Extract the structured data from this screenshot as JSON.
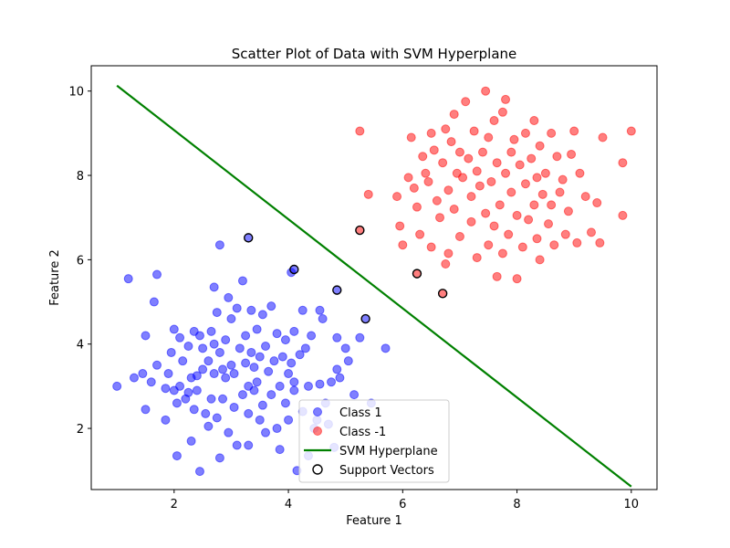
{
  "chart_data": {
    "type": "scatter",
    "title": "Scatter Plot of Data with SVM Hyperplane",
    "xlabel": "Feature 1",
    "ylabel": "Feature 2",
    "xlim": [
      0.55,
      10.45
    ],
    "ylim": [
      0.55,
      10.6
    ],
    "xticks": [
      2,
      4,
      6,
      8,
      10
    ],
    "yticks": [
      2,
      4,
      6,
      8,
      10
    ],
    "grid": false,
    "legend_position": "lower-center",
    "series": [
      {
        "name": "Class 1",
        "kind": "scatter",
        "color": "#0000ff",
        "alpha": 0.5,
        "points": [
          [
            1.0,
            3.0
          ],
          [
            1.2,
            5.55
          ],
          [
            1.3,
            3.2
          ],
          [
            1.45,
            3.3
          ],
          [
            1.5,
            2.45
          ],
          [
            1.5,
            4.2
          ],
          [
            1.6,
            3.1
          ],
          [
            1.65,
            5.0
          ],
          [
            1.7,
            5.65
          ],
          [
            1.7,
            3.5
          ],
          [
            1.85,
            2.2
          ],
          [
            1.85,
            2.95
          ],
          [
            1.9,
            3.3
          ],
          [
            1.95,
            3.8
          ],
          [
            2.0,
            2.9
          ],
          [
            2.0,
            4.35
          ],
          [
            2.05,
            1.35
          ],
          [
            2.05,
            2.6
          ],
          [
            2.1,
            3.0
          ],
          [
            2.1,
            4.15
          ],
          [
            2.15,
            3.6
          ],
          [
            2.2,
            2.7
          ],
          [
            2.25,
            2.85
          ],
          [
            2.25,
            3.95
          ],
          [
            2.3,
            3.2
          ],
          [
            2.3,
            1.7
          ],
          [
            2.35,
            4.3
          ],
          [
            2.35,
            2.45
          ],
          [
            2.4,
            3.25
          ],
          [
            2.4,
            2.9
          ],
          [
            2.45,
            0.98
          ],
          [
            2.45,
            4.2
          ],
          [
            2.5,
            3.9
          ],
          [
            2.5,
            3.4
          ],
          [
            2.55,
            2.35
          ],
          [
            2.6,
            3.6
          ],
          [
            2.6,
            2.05
          ],
          [
            2.65,
            4.3
          ],
          [
            2.65,
            2.7
          ],
          [
            2.7,
            5.35
          ],
          [
            2.7,
            4.0
          ],
          [
            2.7,
            3.3
          ],
          [
            2.75,
            2.25
          ],
          [
            2.75,
            4.75
          ],
          [
            2.8,
            1.3
          ],
          [
            2.8,
            3.8
          ],
          [
            2.8,
            6.35
          ],
          [
            2.85,
            3.4
          ],
          [
            2.85,
            2.7
          ],
          [
            2.9,
            4.1
          ],
          [
            2.9,
            3.2
          ],
          [
            2.95,
            5.1
          ],
          [
            2.95,
            1.9
          ],
          [
            3.0,
            3.5
          ],
          [
            3.0,
            4.6
          ],
          [
            3.05,
            2.5
          ],
          [
            3.05,
            3.3
          ],
          [
            3.1,
            1.6
          ],
          [
            3.1,
            4.85
          ],
          [
            3.15,
            3.9
          ],
          [
            3.2,
            5.5
          ],
          [
            3.2,
            2.8
          ],
          [
            3.25,
            4.2
          ],
          [
            3.25,
            3.55
          ],
          [
            3.3,
            1.6
          ],
          [
            3.3,
            2.35
          ],
          [
            3.3,
            3.0
          ],
          [
            3.35,
            4.8
          ],
          [
            3.35,
            3.8
          ],
          [
            3.4,
            2.9
          ],
          [
            3.4,
            3.45
          ],
          [
            3.45,
            3.1
          ],
          [
            3.45,
            4.35
          ],
          [
            3.5,
            2.2
          ],
          [
            3.5,
            3.7
          ],
          [
            3.55,
            2.55
          ],
          [
            3.55,
            4.7
          ],
          [
            3.6,
            3.95
          ],
          [
            3.6,
            1.9
          ],
          [
            3.65,
            3.35
          ],
          [
            3.7,
            2.8
          ],
          [
            3.7,
            4.9
          ],
          [
            3.75,
            3.6
          ],
          [
            3.8,
            2.0
          ],
          [
            3.8,
            4.25
          ],
          [
            3.85,
            1.5
          ],
          [
            3.85,
            3.0
          ],
          [
            3.9,
            3.7
          ],
          [
            3.95,
            2.6
          ],
          [
            3.95,
            4.1
          ],
          [
            4.0,
            3.3
          ],
          [
            4.0,
            2.2
          ],
          [
            4.05,
            3.55
          ],
          [
            4.05,
            5.7
          ],
          [
            4.1,
            2.9
          ],
          [
            4.1,
            4.3
          ],
          [
            4.1,
            3.1
          ],
          [
            4.15,
            1.0
          ],
          [
            4.2,
            3.75
          ],
          [
            4.25,
            4.8
          ],
          [
            4.25,
            2.4
          ],
          [
            4.3,
            3.9
          ],
          [
            4.35,
            3.0
          ],
          [
            4.35,
            1.35
          ],
          [
            4.4,
            4.2
          ],
          [
            4.45,
            2.0
          ],
          [
            4.5,
            2.2
          ],
          [
            4.55,
            4.8
          ],
          [
            4.55,
            3.05
          ],
          [
            4.6,
            4.6
          ],
          [
            4.65,
            2.6
          ],
          [
            4.7,
            2.1
          ],
          [
            4.75,
            3.1
          ],
          [
            4.8,
            1.55
          ],
          [
            4.85,
            3.4
          ],
          [
            4.85,
            4.15
          ],
          [
            4.9,
            3.2
          ],
          [
            5.0,
            3.9
          ],
          [
            5.05,
            3.6
          ],
          [
            5.15,
            2.8
          ],
          [
            5.25,
            4.15
          ],
          [
            5.45,
            2.6
          ],
          [
            5.7,
            3.9
          ]
        ]
      },
      {
        "name": "Class -1",
        "kind": "scatter",
        "color": "#ff0000",
        "alpha": 0.5,
        "points": [
          [
            5.25,
            9.05
          ],
          [
            5.4,
            7.55
          ],
          [
            5.9,
            7.5
          ],
          [
            5.95,
            6.8
          ],
          [
            6.0,
            6.35
          ],
          [
            6.1,
            7.95
          ],
          [
            6.15,
            8.9
          ],
          [
            6.2,
            7.7
          ],
          [
            6.25,
            7.25
          ],
          [
            6.3,
            6.6
          ],
          [
            6.35,
            8.45
          ],
          [
            6.4,
            8.05
          ],
          [
            6.45,
            7.85
          ],
          [
            6.5,
            9.0
          ],
          [
            6.5,
            6.3
          ],
          [
            6.55,
            8.6
          ],
          [
            6.6,
            7.4
          ],
          [
            6.65,
            7.0
          ],
          [
            6.7,
            8.3
          ],
          [
            6.75,
            9.1
          ],
          [
            6.75,
            5.9
          ],
          [
            6.8,
            7.65
          ],
          [
            6.8,
            6.15
          ],
          [
            6.85,
            8.8
          ],
          [
            6.9,
            9.45
          ],
          [
            6.9,
            7.2
          ],
          [
            6.95,
            8.05
          ],
          [
            7.0,
            6.55
          ],
          [
            7.0,
            8.55
          ],
          [
            7.05,
            7.95
          ],
          [
            7.1,
            9.75
          ],
          [
            7.15,
            8.4
          ],
          [
            7.2,
            7.5
          ],
          [
            7.2,
            6.9
          ],
          [
            7.25,
            9.05
          ],
          [
            7.3,
            6.05
          ],
          [
            7.3,
            8.1
          ],
          [
            7.35,
            7.75
          ],
          [
            7.4,
            8.55
          ],
          [
            7.45,
            10.0
          ],
          [
            7.45,
            7.1
          ],
          [
            7.5,
            6.35
          ],
          [
            7.5,
            8.9
          ],
          [
            7.55,
            7.85
          ],
          [
            7.6,
            9.3
          ],
          [
            7.6,
            6.8
          ],
          [
            7.65,
            5.6
          ],
          [
            7.65,
            8.3
          ],
          [
            7.7,
            7.3
          ],
          [
            7.75,
            9.5
          ],
          [
            7.75,
            6.15
          ],
          [
            7.8,
            8.05
          ],
          [
            7.8,
            9.8
          ],
          [
            7.85,
            6.6
          ],
          [
            7.9,
            8.55
          ],
          [
            7.9,
            7.6
          ],
          [
            7.95,
            8.85
          ],
          [
            8.0,
            5.55
          ],
          [
            8.0,
            7.05
          ],
          [
            8.05,
            8.25
          ],
          [
            8.1,
            6.3
          ],
          [
            8.15,
            7.8
          ],
          [
            8.15,
            9.0
          ],
          [
            8.2,
            6.95
          ],
          [
            8.25,
            8.4
          ],
          [
            8.3,
            7.3
          ],
          [
            8.3,
            9.3
          ],
          [
            8.35,
            6.5
          ],
          [
            8.35,
            7.95
          ],
          [
            8.4,
            8.7
          ],
          [
            8.4,
            6.0
          ],
          [
            8.45,
            7.55
          ],
          [
            8.5,
            8.05
          ],
          [
            8.55,
            6.85
          ],
          [
            8.6,
            9.0
          ],
          [
            8.6,
            7.3
          ],
          [
            8.65,
            6.35
          ],
          [
            8.7,
            8.45
          ],
          [
            8.75,
            7.6
          ],
          [
            8.8,
            7.9
          ],
          [
            8.85,
            6.6
          ],
          [
            8.9,
            7.15
          ],
          [
            8.95,
            8.5
          ],
          [
            9.0,
            9.05
          ],
          [
            9.05,
            6.4
          ],
          [
            9.1,
            8.05
          ],
          [
            9.2,
            7.5
          ],
          [
            9.3,
            6.65
          ],
          [
            9.4,
            7.35
          ],
          [
            9.45,
            6.4
          ],
          [
            9.5,
            8.9
          ],
          [
            9.85,
            8.3
          ],
          [
            9.85,
            7.05
          ],
          [
            10.0,
            9.05
          ]
        ]
      },
      {
        "name": "SVM Hyperplane",
        "kind": "line",
        "color": "#008000",
        "points": [
          [
            1.0,
            10.13
          ],
          [
            10.0,
            0.62
          ]
        ]
      },
      {
        "name": "Support Vectors",
        "kind": "scatter-outline",
        "color": "#000000",
        "points": [
          [
            3.3,
            6.52,
            "#0000ff"
          ],
          [
            4.1,
            5.77,
            "#0000ff"
          ],
          [
            4.85,
            5.28,
            "#0000ff"
          ],
          [
            5.35,
            4.6,
            "#0000ff"
          ],
          [
            5.25,
            6.7,
            "#ff0000"
          ],
          [
            6.25,
            5.67,
            "#ff0000"
          ],
          [
            6.7,
            5.2,
            "#ff0000"
          ]
        ]
      }
    ]
  }
}
